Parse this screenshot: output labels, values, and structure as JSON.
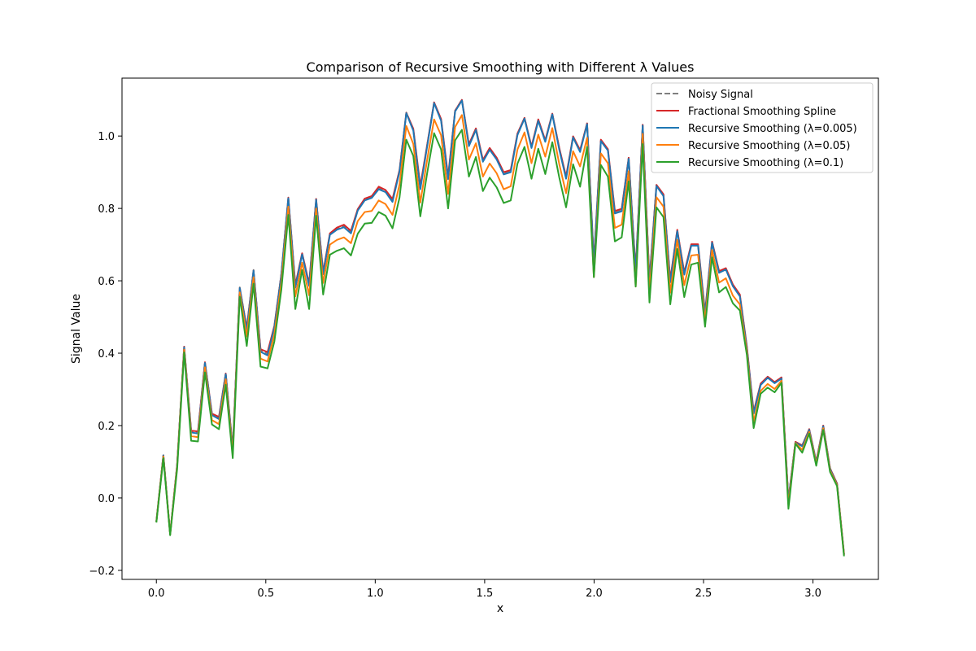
{
  "chart_data": {
    "type": "line",
    "title": "Comparison of Recursive Smoothing with Different λ Values",
    "xlabel": "x",
    "ylabel": "Signal Value",
    "xlim": [
      -0.157,
      3.299
    ],
    "ylim": [
      -0.225,
      1.16
    ],
    "grid": false,
    "legend_placement": "top-right",
    "xticks": [
      {
        "value": 0.0,
        "label": "0.0"
      },
      {
        "value": 0.5,
        "label": "0.5"
      },
      {
        "value": 1.0,
        "label": "1.0"
      },
      {
        "value": 1.5,
        "label": "1.5"
      },
      {
        "value": 2.0,
        "label": "2.0"
      },
      {
        "value": 2.5,
        "label": "2.5"
      },
      {
        "value": 3.0,
        "label": "3.0"
      }
    ],
    "yticks": [
      {
        "value": -0.2,
        "label": "−0.2"
      },
      {
        "value": 0.0,
        "label": "0.0"
      },
      {
        "value": 0.2,
        "label": "0.2"
      },
      {
        "value": 0.4,
        "label": "0.4"
      },
      {
        "value": 0.6,
        "label": "0.6"
      },
      {
        "value": 0.8,
        "label": "0.8"
      },
      {
        "value": 1.0,
        "label": "1.0"
      }
    ],
    "x": [
      0.0,
      0.032,
      0.063,
      0.095,
      0.127,
      0.159,
      0.19,
      0.222,
      0.254,
      0.286,
      0.317,
      0.349,
      0.381,
      0.413,
      0.444,
      0.476,
      0.508,
      0.539,
      0.571,
      0.603,
      0.635,
      0.666,
      0.698,
      0.73,
      0.762,
      0.793,
      0.825,
      0.857,
      0.889,
      0.92,
      0.952,
      0.984,
      1.016,
      1.047,
      1.079,
      1.111,
      1.142,
      1.174,
      1.206,
      1.238,
      1.269,
      1.301,
      1.333,
      1.365,
      1.396,
      1.428,
      1.46,
      1.492,
      1.523,
      1.555,
      1.587,
      1.619,
      1.65,
      1.682,
      1.714,
      1.745,
      1.777,
      1.809,
      1.841,
      1.872,
      1.904,
      1.936,
      1.968,
      1.999,
      2.031,
      2.063,
      2.095,
      2.126,
      2.158,
      2.19,
      2.222,
      2.253,
      2.285,
      2.317,
      2.348,
      2.38,
      2.412,
      2.444,
      2.475,
      2.507,
      2.539,
      2.571,
      2.602,
      2.634,
      2.666,
      2.698,
      2.729,
      2.761,
      2.793,
      2.825,
      2.856,
      2.888,
      2.92,
      2.951,
      2.983,
      3.015,
      3.047,
      3.078,
      3.11,
      3.142
    ],
    "series": [
      {
        "name": "Noisy Signal",
        "color": "#7f7f7f",
        "dash": "dashed",
        "values": [
          -0.065,
          0.118,
          -0.1,
          0.092,
          0.418,
          0.185,
          0.182,
          0.375,
          0.232,
          0.222,
          0.344,
          0.134,
          0.582,
          0.468,
          0.63,
          0.408,
          0.398,
          0.474,
          0.618,
          0.83,
          0.585,
          0.676,
          0.59,
          0.826,
          0.622,
          0.73,
          0.745,
          0.752,
          0.735,
          0.797,
          0.825,
          0.832,
          0.857,
          0.848,
          0.822,
          0.905,
          1.065,
          1.018,
          0.857,
          0.977,
          1.093,
          1.045,
          0.885,
          1.07,
          1.1,
          0.975,
          1.02,
          0.932,
          0.965,
          0.938,
          0.897,
          0.903,
          1.006,
          1.05,
          0.97,
          1.045,
          0.987,
          1.062,
          0.965,
          0.885,
          0.999,
          0.959,
          1.035,
          0.65,
          0.989,
          0.963,
          0.79,
          0.796,
          0.94,
          0.625,
          1.031,
          0.598,
          0.865,
          0.837,
          0.6,
          0.74,
          0.62,
          0.7,
          0.7,
          0.51,
          0.708,
          0.625,
          0.634,
          0.588,
          0.56,
          0.417,
          0.236,
          0.315,
          0.335,
          0.32,
          0.333,
          -0.005,
          0.155,
          0.145,
          0.19,
          0.1,
          0.2,
          0.082,
          0.04,
          -0.155
        ]
      },
      {
        "name": "Fractional Smoothing Spline",
        "color": "#d62728",
        "dash": "solid",
        "values": [
          -0.065,
          0.118,
          -0.1,
          0.092,
          0.418,
          0.186,
          0.184,
          0.375,
          0.233,
          0.224,
          0.344,
          0.135,
          0.58,
          0.47,
          0.628,
          0.411,
          0.403,
          0.475,
          0.618,
          0.83,
          0.588,
          0.676,
          0.592,
          0.826,
          0.624,
          0.731,
          0.747,
          0.755,
          0.738,
          0.798,
          0.827,
          0.834,
          0.86,
          0.851,
          0.826,
          0.906,
          1.064,
          1.02,
          0.862,
          0.978,
          1.093,
          1.047,
          0.888,
          1.07,
          1.1,
          0.977,
          1.021,
          0.934,
          0.967,
          0.94,
          0.9,
          0.906,
          1.007,
          1.05,
          0.971,
          1.046,
          0.988,
          1.062,
          0.967,
          0.888,
          0.999,
          0.961,
          1.035,
          0.653,
          0.99,
          0.964,
          0.793,
          0.799,
          0.94,
          0.628,
          1.031,
          0.602,
          0.865,
          0.839,
          0.603,
          0.741,
          0.623,
          0.701,
          0.701,
          0.513,
          0.708,
          0.627,
          0.635,
          0.59,
          0.562,
          0.419,
          0.238,
          0.316,
          0.335,
          0.32,
          0.333,
          -0.005,
          0.155,
          0.145,
          0.19,
          0.1,
          0.2,
          0.082,
          0.04,
          -0.155
        ]
      },
      {
        "name": "Recursive Smoothing (λ=0.005)",
        "color": "#1f77b4",
        "dash": "solid",
        "values": [
          -0.065,
          0.118,
          -0.1,
          0.092,
          0.416,
          0.181,
          0.178,
          0.373,
          0.229,
          0.218,
          0.342,
          0.131,
          0.58,
          0.464,
          0.628,
          0.404,
          0.394,
          0.471,
          0.616,
          0.828,
          0.581,
          0.673,
          0.586,
          0.824,
          0.618,
          0.727,
          0.741,
          0.748,
          0.731,
          0.794,
          0.822,
          0.829,
          0.853,
          0.845,
          0.818,
          0.902,
          1.063,
          1.015,
          0.853,
          0.974,
          1.091,
          1.042,
          0.881,
          1.068,
          1.098,
          0.972,
          1.017,
          0.929,
          0.962,
          0.935,
          0.894,
          0.9,
          1.003,
          1.048,
          0.967,
          1.042,
          0.984,
          1.06,
          0.962,
          0.882,
          0.996,
          0.956,
          1.033,
          0.646,
          0.986,
          0.96,
          0.786,
          0.792,
          0.937,
          0.621,
          1.029,
          0.594,
          0.862,
          0.834,
          0.596,
          0.737,
          0.617,
          0.697,
          0.697,
          0.507,
          0.705,
          0.622,
          0.631,
          0.585,
          0.557,
          0.414,
          0.233,
          0.312,
          0.332,
          0.317,
          0.33,
          -0.007,
          0.153,
          0.143,
          0.188,
          0.098,
          0.198,
          0.08,
          0.038,
          -0.157
        ]
      },
      {
        "name": "Recursive Smoothing (λ=0.05)",
        "color": "#ff7f0e",
        "dash": "solid",
        "values": [
          -0.066,
          0.115,
          -0.101,
          0.088,
          0.41,
          0.171,
          0.168,
          0.361,
          0.215,
          0.204,
          0.328,
          0.121,
          0.568,
          0.446,
          0.61,
          0.385,
          0.377,
          0.452,
          0.595,
          0.805,
          0.557,
          0.65,
          0.56,
          0.8,
          0.594,
          0.7,
          0.713,
          0.72,
          0.704,
          0.765,
          0.79,
          0.793,
          0.822,
          0.812,
          0.782,
          0.866,
          1.028,
          0.978,
          0.816,
          0.937,
          1.046,
          1.002,
          0.84,
          1.025,
          1.058,
          0.935,
          0.98,
          0.888,
          0.924,
          0.897,
          0.853,
          0.861,
          0.963,
          1.01,
          0.925,
          1.004,
          0.943,
          1.022,
          0.922,
          0.842,
          0.958,
          0.916,
          0.995,
          0.61,
          0.952,
          0.925,
          0.746,
          0.755,
          0.903,
          0.584,
          1.006,
          0.568,
          0.831,
          0.805,
          0.567,
          0.713,
          0.588,
          0.67,
          0.672,
          0.49,
          0.685,
          0.595,
          0.607,
          0.559,
          0.535,
          0.405,
          0.21,
          0.296,
          0.315,
          0.301,
          0.324,
          -0.018,
          0.152,
          0.133,
          0.183,
          0.094,
          0.193,
          0.076,
          0.036,
          -0.158
        ]
      },
      {
        "name": "Recursive Smoothing (λ=0.1)",
        "color": "#2ca02c",
        "dash": "solid",
        "values": [
          -0.068,
          0.11,
          -0.103,
          0.08,
          0.402,
          0.158,
          0.156,
          0.347,
          0.203,
          0.19,
          0.313,
          0.11,
          0.556,
          0.42,
          0.592,
          0.363,
          0.358,
          0.432,
          0.575,
          0.782,
          0.522,
          0.63,
          0.522,
          0.78,
          0.562,
          0.672,
          0.683,
          0.69,
          0.67,
          0.73,
          0.758,
          0.76,
          0.79,
          0.78,
          0.745,
          0.83,
          0.99,
          0.945,
          0.778,
          0.9,
          1.008,
          0.963,
          0.8,
          0.988,
          1.017,
          0.888,
          0.942,
          0.848,
          0.885,
          0.858,
          0.815,
          0.822,
          0.924,
          0.97,
          0.882,
          0.965,
          0.895,
          0.983,
          0.885,
          0.803,
          0.922,
          0.86,
          0.97,
          0.61,
          0.92,
          0.888,
          0.709,
          0.72,
          0.875,
          0.584,
          0.978,
          0.54,
          0.803,
          0.776,
          0.535,
          0.688,
          0.555,
          0.645,
          0.65,
          0.473,
          0.665,
          0.568,
          0.583,
          0.538,
          0.518,
          0.395,
          0.193,
          0.288,
          0.305,
          0.292,
          0.318,
          -0.03,
          0.15,
          0.125,
          0.178,
          0.089,
          0.188,
          0.072,
          0.033,
          -0.161
        ]
      }
    ]
  }
}
